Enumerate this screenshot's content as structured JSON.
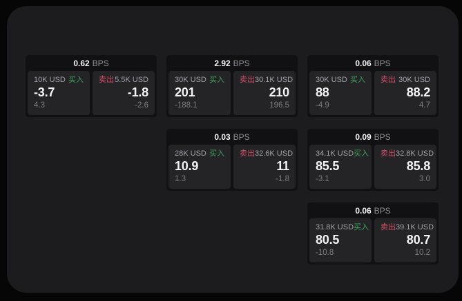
{
  "labels": {
    "bps_unit": "BPS",
    "buy": "买入",
    "sell": "卖出"
  },
  "colors": {
    "background": "#060606",
    "panel_bg": "#1c1c1e",
    "card_bg": "#111113",
    "tile_bg": "#242427",
    "buy_green": "#3fa35d",
    "sell_red": "#d25068",
    "text_primary": "#f4f4f6",
    "text_label": "#a2a2aa",
    "text_muted": "#8f8f96",
    "text_dim": "#7c7c82"
  },
  "cards": [
    {
      "bps": "0.62",
      "buy": {
        "notional": "10K USD",
        "side": "买入",
        "value": "-3.7",
        "secondary": "4.3"
      },
      "sell": {
        "notional": "5.5K USD",
        "side": "卖出",
        "value": "-1.8",
        "secondary": "-2.6"
      }
    },
    {
      "bps": "2.92",
      "buy": {
        "notional": "30K USD",
        "side": "买入",
        "value": "201",
        "secondary": "-188.1"
      },
      "sell": {
        "notional": "30.1K USD",
        "side": "卖出",
        "value": "210",
        "secondary": "196.5"
      }
    },
    {
      "bps": "0.06",
      "buy": {
        "notional": "30K USD",
        "side": "买入",
        "value": "88",
        "secondary": "-4.9"
      },
      "sell": {
        "notional": "30K USD",
        "side": "卖出",
        "value": "88.2",
        "secondary": "4.7"
      }
    },
    {
      "bps": "0.03",
      "buy": {
        "notional": "28K USD",
        "side": "买入",
        "value": "10.9",
        "secondary": "1.3"
      },
      "sell": {
        "notional": "32.6K USD",
        "side": "卖出",
        "value": "11",
        "secondary": "-1.8"
      }
    },
    {
      "bps": "0.09",
      "buy": {
        "notional": "34.1K USD",
        "side": "买入",
        "value": "85.5",
        "secondary": "-3.1"
      },
      "sell": {
        "notional": "32.8K USD",
        "side": "卖出",
        "value": "85.8",
        "secondary": "3.0"
      }
    },
    {
      "bps": "0.06",
      "buy": {
        "notional": "31.8K USD",
        "side": "买入",
        "value": "80.5",
        "secondary": "-10.8"
      },
      "sell": {
        "notional": "39.1K USD",
        "side": "卖出",
        "value": "80.7",
        "secondary": "10.2"
      }
    }
  ]
}
